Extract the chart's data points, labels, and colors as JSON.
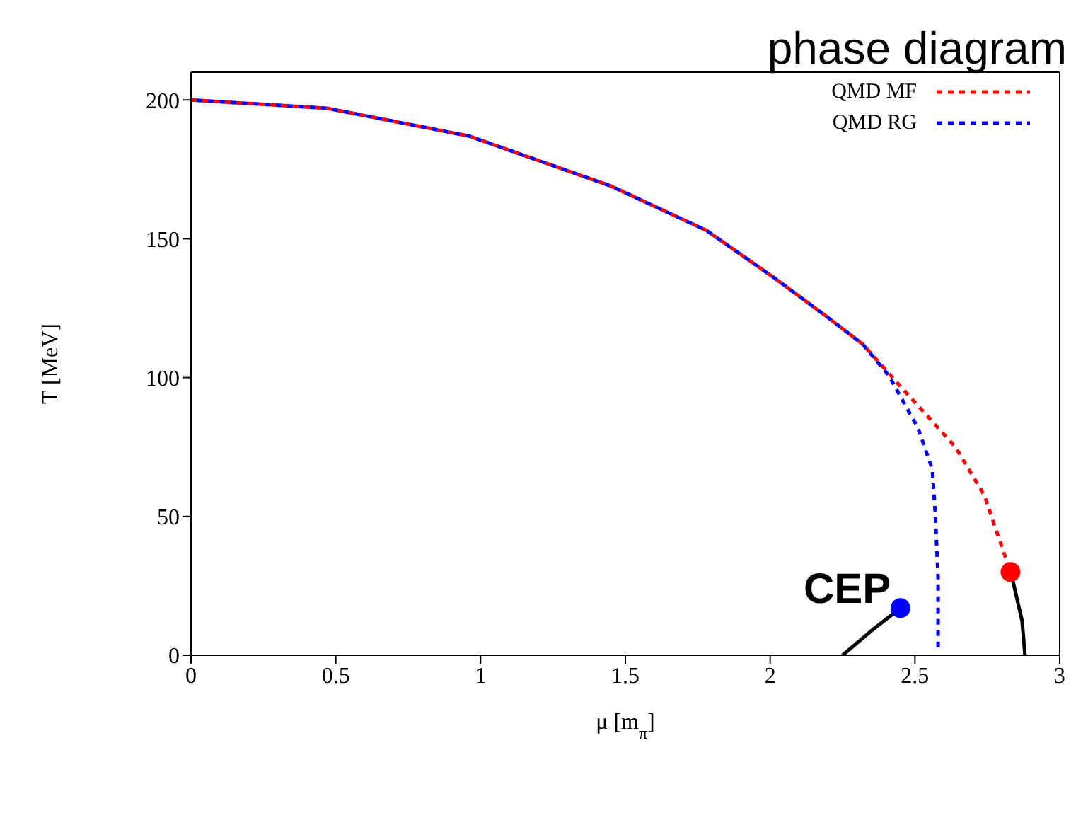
{
  "chart_data": {
    "type": "line",
    "title": "phase diagram",
    "xlabel": "μ [m$_{π}$]",
    "ylabel": "T [MeV]",
    "xlim": [
      0,
      3
    ],
    "xticks": [
      0,
      0.5,
      1,
      1.5,
      2,
      2.5,
      3
    ],
    "ylim": [
      0,
      210
    ],
    "yticks": [
      0,
      50,
      100,
      150,
      200
    ],
    "grid": false,
    "legend": "top right",
    "annotations": [
      "CEP"
    ],
    "series": [
      {
        "name": "QMD MF",
        "color": "#ff0000",
        "line_style": "dashed",
        "marker": "none",
        "x": [
          0,
          0.47,
          0.96,
          1.45,
          1.78,
          2.02,
          2.2,
          2.32,
          2.44,
          2.64,
          2.74,
          2.83
        ],
        "values": [
          200,
          197,
          187,
          169,
          153,
          135.5,
          121.6,
          112,
          98,
          75,
          57.5,
          30
        ]
      },
      {
        "name": "QMD RG",
        "color": "#0000ff",
        "line_style": "dashed",
        "marker": "none",
        "x": [
          0,
          0.47,
          0.96,
          1.45,
          1.78,
          2.02,
          2.2,
          2.32,
          2.41,
          2.51,
          2.56,
          2.57,
          2.58,
          2.58
        ],
        "values": [
          200,
          197,
          187,
          169,
          153,
          135.5,
          121.6,
          112,
          100.7,
          82,
          67,
          51.5,
          28,
          2
        ]
      },
      {
        "color": "#000000",
        "line_style": "solid",
        "marker": "none",
        "x": [
          2.25,
          2.36,
          2.45
        ],
        "values": [
          0,
          9.7,
          17
        ]
      },
      {
        "color": "#000000",
        "line_style": "solid",
        "marker": "none",
        "x": [
          2.83,
          2.84,
          2.87,
          2.88
        ],
        "values": [
          30,
          26,
          12.5,
          0
        ]
      },
      {
        "type": "scatter",
        "marker": "circle",
        "colors": [
          "#0000ff",
          "#ff0000"
        ],
        "x": [
          2.45,
          2.83
        ],
        "values": [
          17,
          30
        ]
      }
    ]
  }
}
